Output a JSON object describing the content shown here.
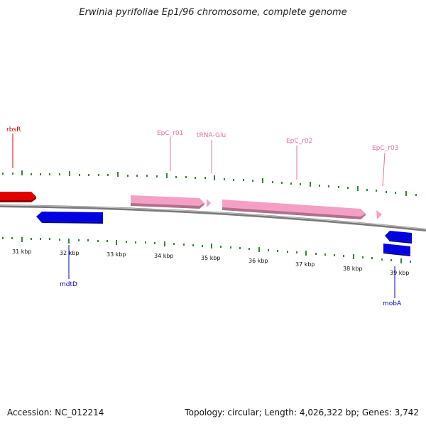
{
  "title": "Erwinia pyrifoliae Ep1/96 chromosome, complete genome",
  "footer": {
    "accession": "Accession: NC_012214",
    "summary": "Topology: circular; Length: 4,026,322 bp; Genes: 3,742"
  },
  "colors": {
    "forward_gene": "#e00000",
    "reverse_gene": "#0000e0",
    "rna": "#f4a0c4",
    "rna_label": "#e070a0",
    "tick": "#2e8b2e",
    "backbone": "#7a7a7a"
  },
  "ticks": [
    "31 kbp",
    "32 kbp",
    "33 kbp",
    "34 kbp",
    "35 kbp",
    "36 kbp",
    "37 kbp",
    "38 kbp",
    "39 kbp"
  ],
  "features": [
    {
      "label": "rbsR",
      "kind": "forward_gene"
    },
    {
      "label": "mdtD",
      "kind": "reverse_gene"
    },
    {
      "label": "EpC_r01",
      "kind": "rna"
    },
    {
      "label": "tRNA-Glu",
      "kind": "rna"
    },
    {
      "label": "EpC_r02",
      "kind": "rna"
    },
    {
      "label": "EpC_r03",
      "kind": "rna"
    },
    {
      "label": "mobA",
      "kind": "reverse_gene"
    }
  ]
}
